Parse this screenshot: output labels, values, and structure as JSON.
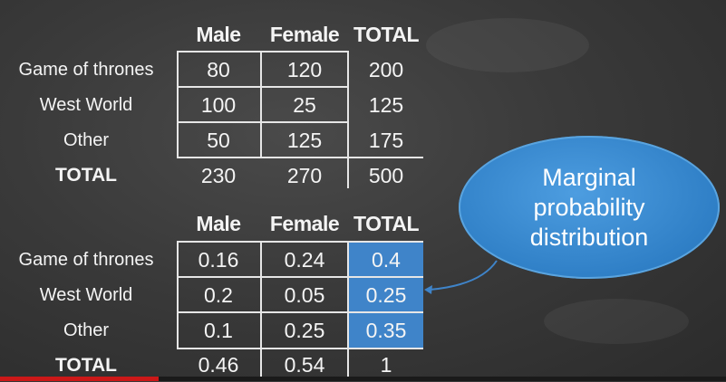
{
  "top_table": {
    "headers": [
      "Male",
      "Female",
      "TOTAL"
    ],
    "rows": [
      {
        "label": "Game of thrones",
        "values": [
          "80",
          "120",
          "200"
        ]
      },
      {
        "label": "West World",
        "values": [
          "100",
          "25",
          "125"
        ]
      },
      {
        "label": "Other",
        "values": [
          "50",
          "125",
          "175"
        ]
      }
    ],
    "total": {
      "label": "TOTAL",
      "values": [
        "230",
        "270",
        "500"
      ]
    }
  },
  "bottom_table": {
    "headers": [
      "Male",
      "Female",
      "TOTAL"
    ],
    "rows": [
      {
        "label": "Game of thrones",
        "values": [
          "0.16",
          "0.24",
          "0.4"
        ]
      },
      {
        "label": "West World",
        "values": [
          "0.2",
          "0.05",
          "0.25"
        ]
      },
      {
        "label": "Other",
        "values": [
          "0.1",
          "0.25",
          "0.35"
        ]
      }
    ],
    "total": {
      "label": "TOTAL",
      "values": [
        "0.46",
        "0.54",
        "1"
      ]
    }
  },
  "callout": {
    "line1": "Marginal",
    "line2": "probability",
    "line3": "distribution"
  },
  "colors": {
    "board": "#3a3a3a",
    "highlight": "#3f84c9",
    "callout": "#2f7fc6",
    "arrow": "#3f84c9"
  }
}
